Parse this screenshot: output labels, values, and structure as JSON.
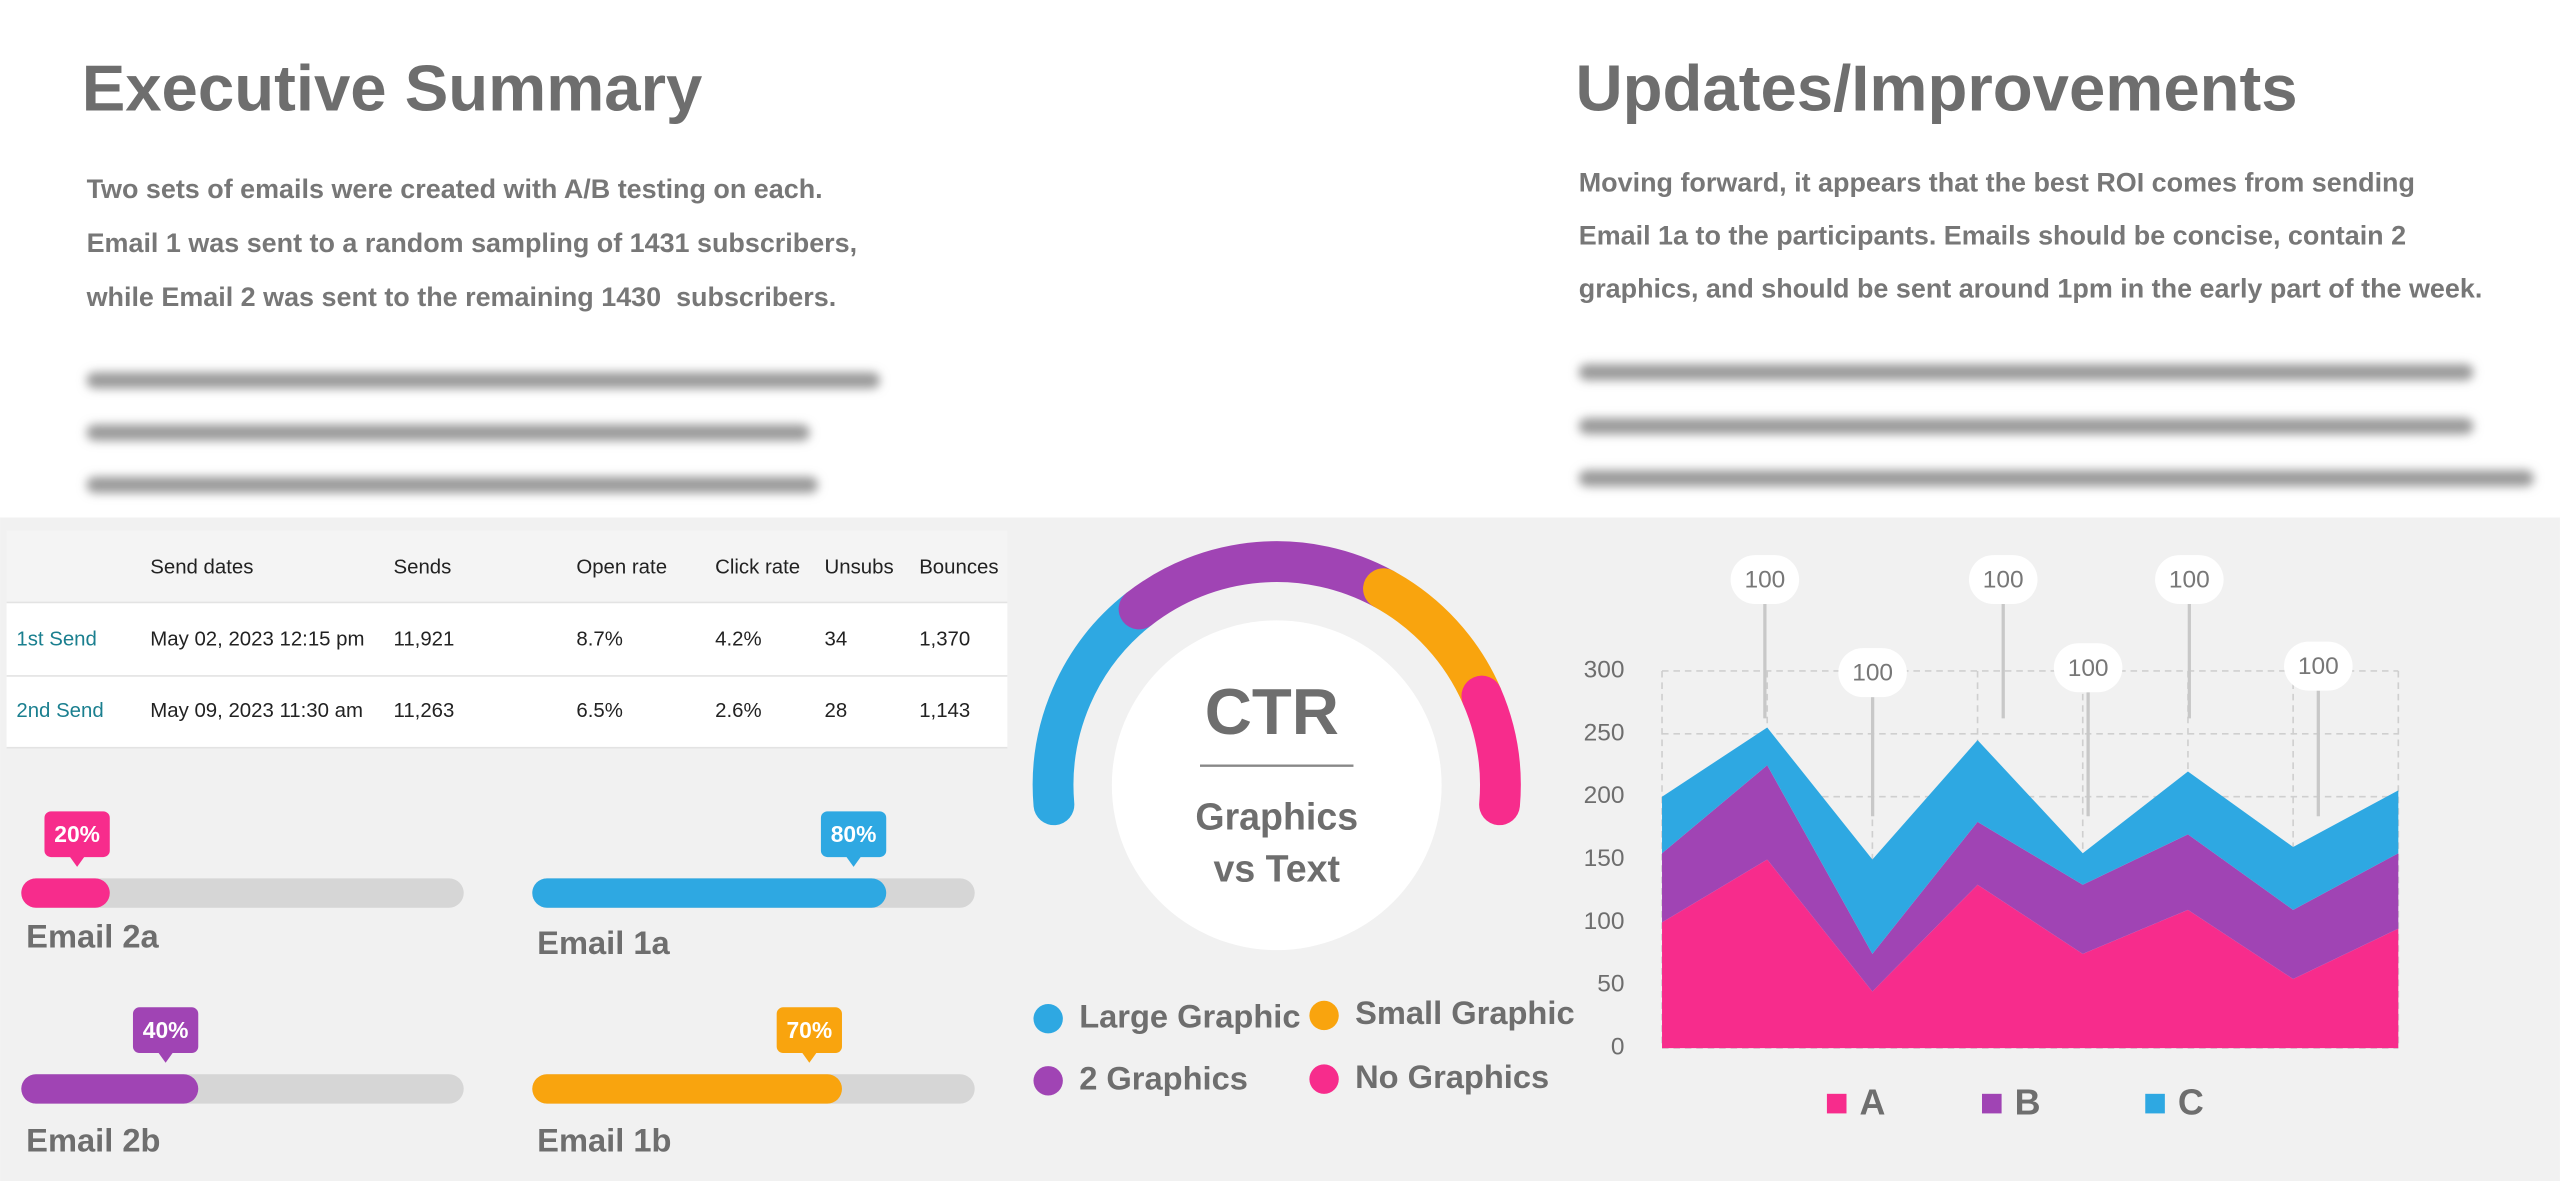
{
  "summary": {
    "title": "Executive Summary",
    "lines": [
      "Two sets of emails were created with A/B testing on each.",
      "Email 1 was sent to a random sampling of 1431 subscribers,",
      "while Email 2 was sent to the remaining 1430  subscribers."
    ]
  },
  "updates": {
    "title": "Updates/Improvements",
    "lines": [
      "Moving forward, it appears that the best ROI comes from sending",
      "Email 1a to the participants. Emails should be concise, contain 2",
      "graphics, and should be sent around 1pm in the early part of the week."
    ]
  },
  "table": {
    "header": [
      "Send dates",
      "Sends",
      "Open rate",
      "Click rate",
      "Unsubs",
      "Bounces"
    ],
    "rows": [
      [
        "1st Send",
        "May 02, 2023 12:15 pm",
        "11,921",
        "8.7%",
        "4.2%",
        "34",
        "1,370"
      ],
      [
        "2nd Send",
        "May 09, 2023 11:30 am",
        "11,263",
        "6.5%",
        "2.6%",
        "28",
        "1,143"
      ]
    ]
  },
  "chart_data": [
    {
      "type": "progress",
      "categories": [
        "Email 2a",
        "Email 1a",
        "Email 2b",
        "Email 1b"
      ],
      "values": [
        20,
        80,
        40,
        70
      ],
      "value_labels": [
        "20%",
        "80%",
        "40%",
        "70%"
      ],
      "colors": [
        "#f72c8c",
        "#2ea8e2",
        "#a044b4",
        "#f9a40e"
      ],
      "xlim": [
        0,
        100
      ]
    },
    {
      "type": "gauge",
      "title": "CTR",
      "subtitle": [
        "Graphics",
        "vs Text"
      ],
      "categories": [
        "Large Graphic",
        "Small Graphic",
        "2 Graphics",
        "No Graphics"
      ],
      "values": [
        30,
        20,
        35,
        15
      ],
      "colors": [
        "#2ea8e2",
        "#f9a40e",
        "#a044b4",
        "#f72c8c"
      ],
      "order": [
        0,
        2,
        1,
        3
      ]
    },
    {
      "type": "area",
      "stacked": true,
      "categories": [
        null,
        null,
        null,
        null,
        null,
        null,
        null,
        null
      ],
      "series": [
        {
          "name": "A",
          "color": "#f72c8c",
          "values": [
            100,
            150,
            45,
            130,
            75,
            110,
            55,
            95
          ]
        },
        {
          "name": "B",
          "color": "#a044b4",
          "values": [
            55,
            75,
            30,
            50,
            55,
            60,
            55,
            60
          ]
        },
        {
          "name": "C",
          "color": "#2ea8e2",
          "values": [
            45,
            30,
            75,
            65,
            25,
            50,
            50,
            50
          ]
        }
      ],
      "ylim": [
        0,
        300
      ],
      "yticks": [
        0,
        50,
        100,
        150,
        200,
        250,
        300
      ],
      "grid": true,
      "annotations": [
        "100",
        "100",
        "100",
        "100",
        "100",
        "100"
      ],
      "legend": "bottom"
    }
  ]
}
